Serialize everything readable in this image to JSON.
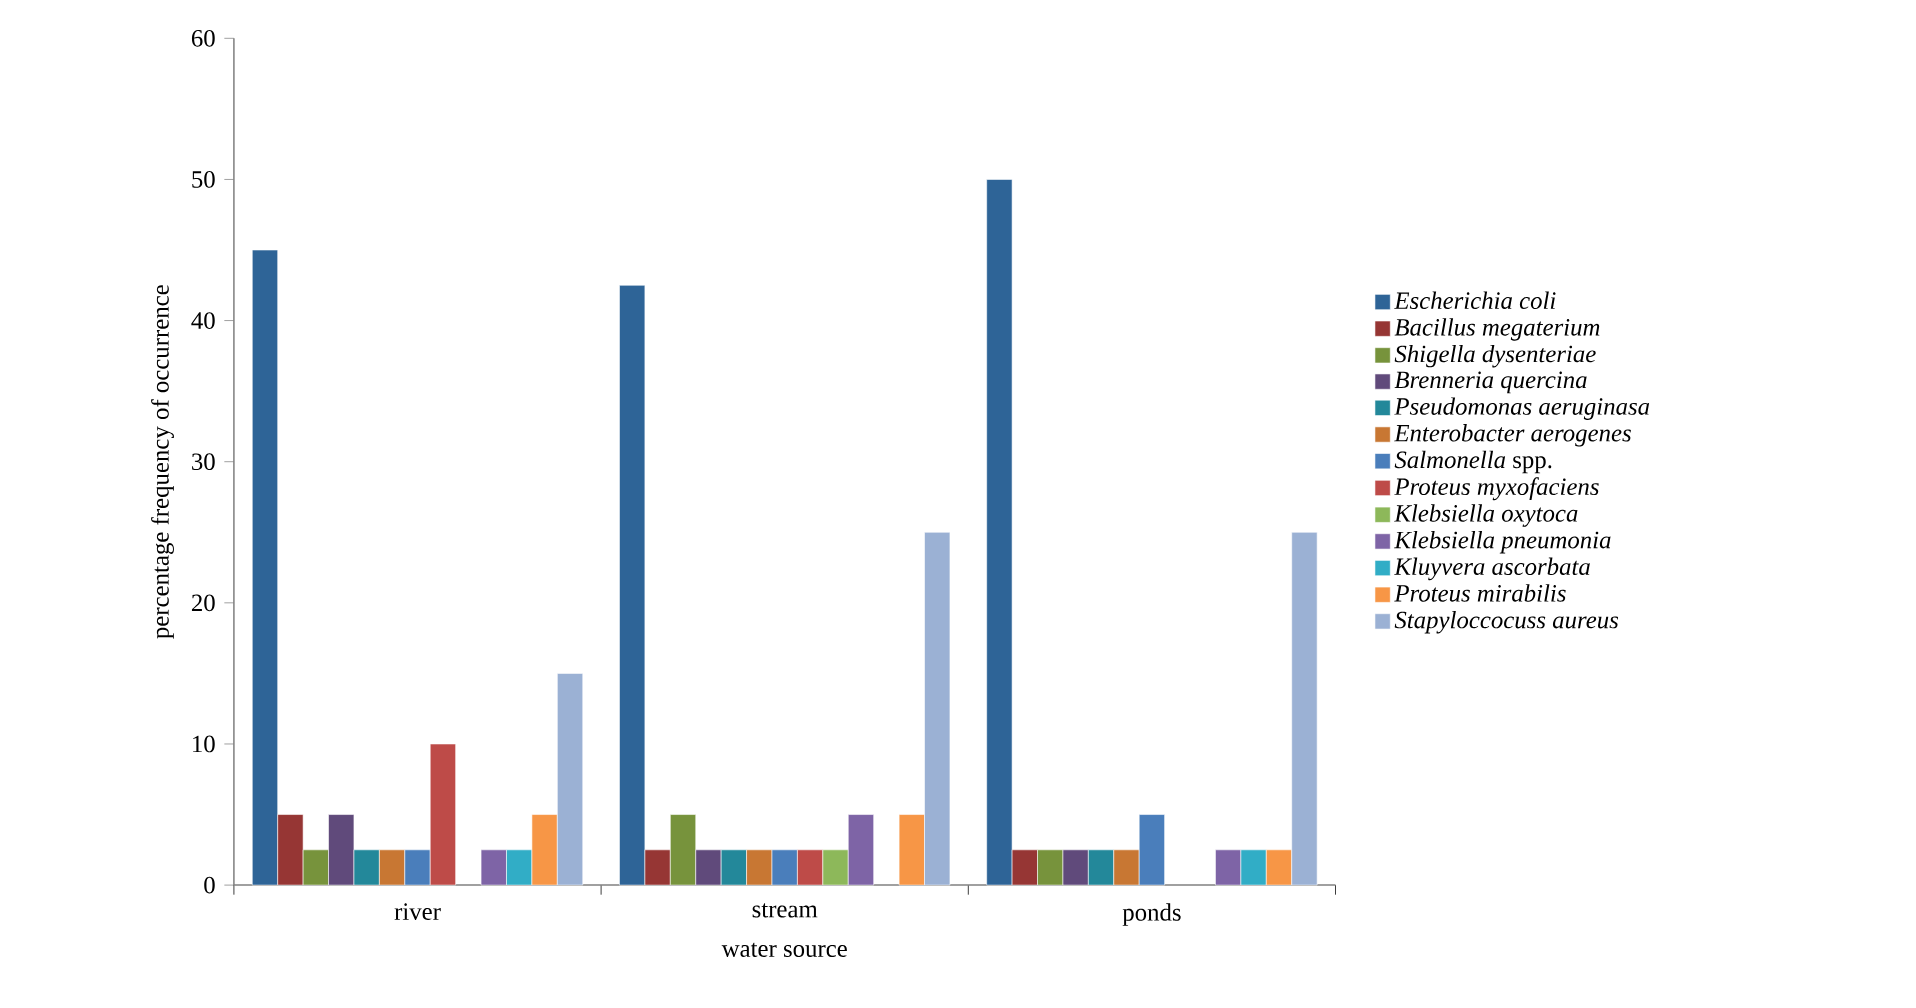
{
  "chart_data": {
    "type": "bar",
    "xlabel": "water source",
    "ylabel": "percentage frequency of occurrence",
    "categories": [
      "river",
      "stream",
      "ponds"
    ],
    "ylim": [
      0,
      60
    ],
    "yticks": [
      0,
      10,
      20,
      30,
      40,
      50,
      60
    ],
    "grid": false,
    "legend": "right",
    "series": [
      {
        "name": "*Escherichia coli*",
        "color": "#2e6497",
        "values": [
          45,
          42.5,
          50
        ]
      },
      {
        "name": "*Bacillus megaterium*",
        "color": "#963634",
        "values": [
          5,
          2.5,
          2.5
        ]
      },
      {
        "name": "*Shigella dysenteriae*",
        "color": "#77933c",
        "values": [
          2.5,
          5,
          2.5
        ]
      },
      {
        "name": "*Brenneria quercina*",
        "color": "#604a7b",
        "values": [
          5,
          2.5,
          2.5
        ]
      },
      {
        "name": "*Pseudomonas aeruginasa*",
        "color": "#23889a",
        "values": [
          2.5,
          2.5,
          2.5
        ]
      },
      {
        "name": "*Enterobacter aerogenes*",
        "color": "#c87733",
        "values": [
          2.5,
          2.5,
          2.5
        ]
      },
      {
        "name": "*Salmonella* spp.",
        "color": "#4a7ebb",
        "values": [
          2.5,
          2.5,
          5
        ]
      },
      {
        "name": "*Proteus myxofaciens*",
        "color": "#be4b48",
        "values": [
          10,
          2.5,
          null
        ]
      },
      {
        "name": "*Klebsiella oxytoca*",
        "color": "#8db85a",
        "values": [
          null,
          2.5,
          null
        ]
      },
      {
        "name": "*Klebsiella pneumonia*",
        "color": "#7e64a6",
        "values": [
          2.5,
          5,
          2.5
        ]
      },
      {
        "name": "*Kluyvera ascorbata*",
        "color": "#31adc6",
        "values": [
          2.5,
          null,
          2.5
        ]
      },
      {
        "name": "*Proteus mirabilis*",
        "color": "#f79646",
        "values": [
          5,
          5,
          2.5
        ]
      },
      {
        "name": "*Stapyloccocuss  aureus*",
        "color": "#9bb1d4",
        "values": [
          15,
          25,
          25
        ]
      }
    ]
  }
}
